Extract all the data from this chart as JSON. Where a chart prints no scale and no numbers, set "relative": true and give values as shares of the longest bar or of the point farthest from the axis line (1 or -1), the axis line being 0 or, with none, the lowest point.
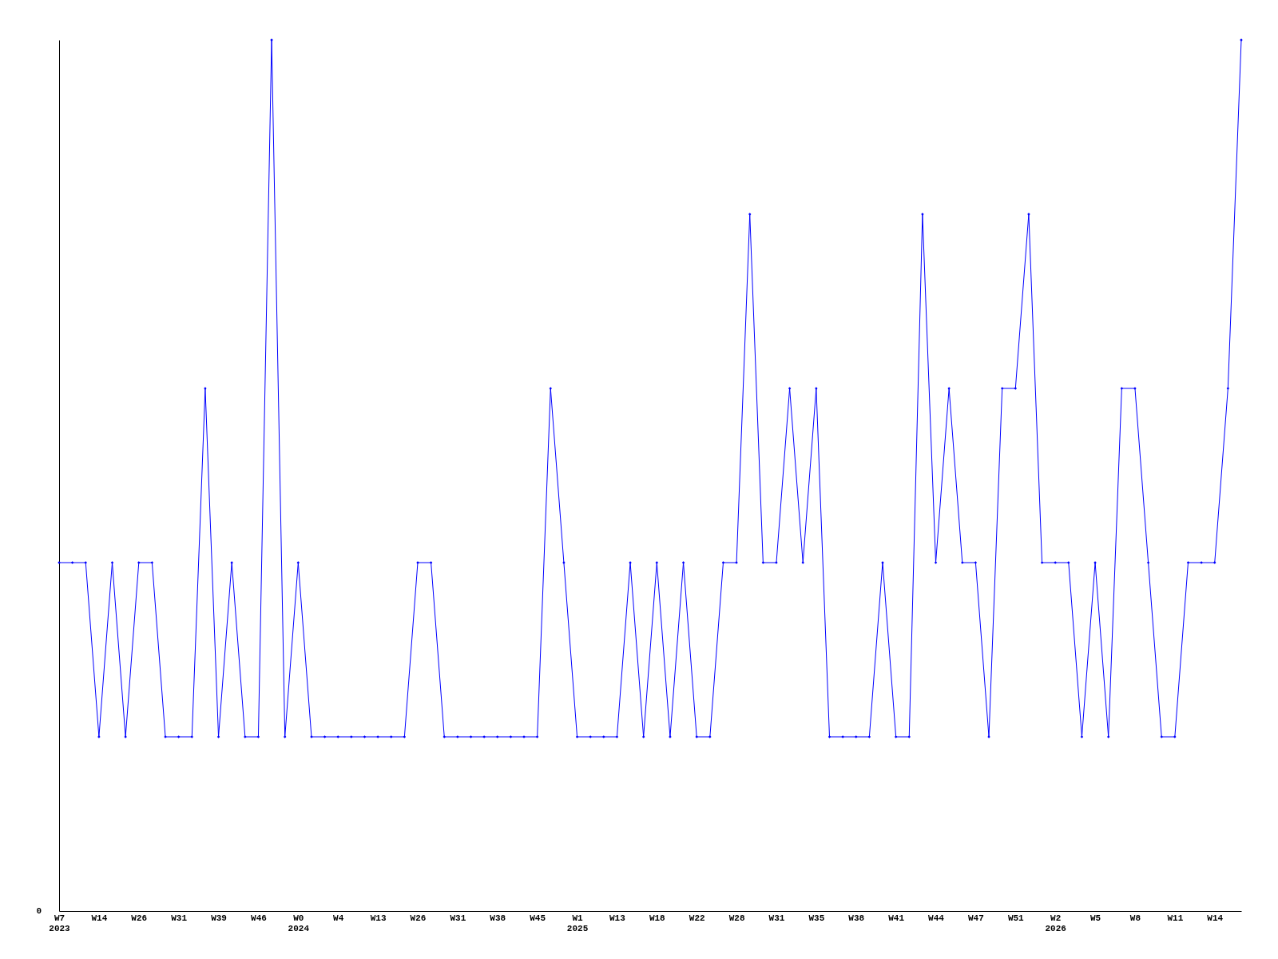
{
  "chart_data": {
    "type": "line",
    "relative": true,
    "marker": "diamond",
    "grid": false,
    "annotations": [
      "0"
    ],
    "categories": [
      "W7\n2023",
      null,
      null,
      "W14",
      null,
      null,
      "W26",
      null,
      null,
      "W31",
      null,
      null,
      "W39",
      null,
      null,
      "W46",
      null,
      null,
      "W0\n2024",
      null,
      null,
      "W4",
      null,
      null,
      "W13",
      null,
      null,
      "W26",
      null,
      null,
      "W31",
      null,
      null,
      "W38",
      null,
      null,
      "W45",
      null,
      null,
      "W1\n2025",
      null,
      null,
      "W13",
      null,
      null,
      "W18",
      null,
      null,
      "W22",
      null,
      null,
      "W28",
      null,
      null,
      "W31",
      null,
      null,
      "W35",
      null,
      null,
      "W38",
      null,
      null,
      "W41",
      null,
      null,
      "W44",
      null,
      null,
      "W47",
      null,
      null,
      "W51",
      null,
      null,
      "W2\n2026",
      null,
      null,
      "W5",
      null,
      null,
      "W8",
      null,
      null,
      "W11",
      null,
      null,
      "W14",
      null,
      null
    ],
    "series": [
      {
        "color": "#0000ff",
        "values": [
          0.4,
          0.4,
          0.4,
          0.2,
          0.4,
          0.2,
          0.4,
          0.4,
          0.2,
          0.2,
          0.2,
          0.6,
          0.2,
          0.4,
          0.2,
          0.2,
          1,
          0.2,
          0.4,
          0.2,
          0.2,
          0.2,
          0.2,
          0.2,
          0.2,
          0.2,
          0.2,
          0.4,
          0.4,
          0.2,
          0.2,
          0.2,
          0.2,
          0.2,
          0.2,
          0.2,
          0.2,
          0.6,
          0.4,
          0.2,
          0.2,
          0.2,
          0.2,
          0.4,
          0.2,
          0.4,
          0.2,
          0.4,
          0.2,
          0.2,
          0.4,
          0.4,
          0.8,
          0.4,
          0.4,
          0.6,
          0.4,
          0.6,
          0.2,
          0.2,
          0.2,
          0.2,
          0.4,
          0.2,
          0.2,
          0.8,
          0.4,
          0.6,
          0.4,
          0.4,
          0.2,
          0.6,
          0.6,
          0.8,
          0.4,
          0.4,
          0.4,
          0.2,
          0.4,
          0.2,
          0.6,
          0.6,
          0.4,
          0.2,
          0.2,
          0.4,
          0.4,
          0.4,
          0.6,
          1
        ]
      }
    ]
  }
}
